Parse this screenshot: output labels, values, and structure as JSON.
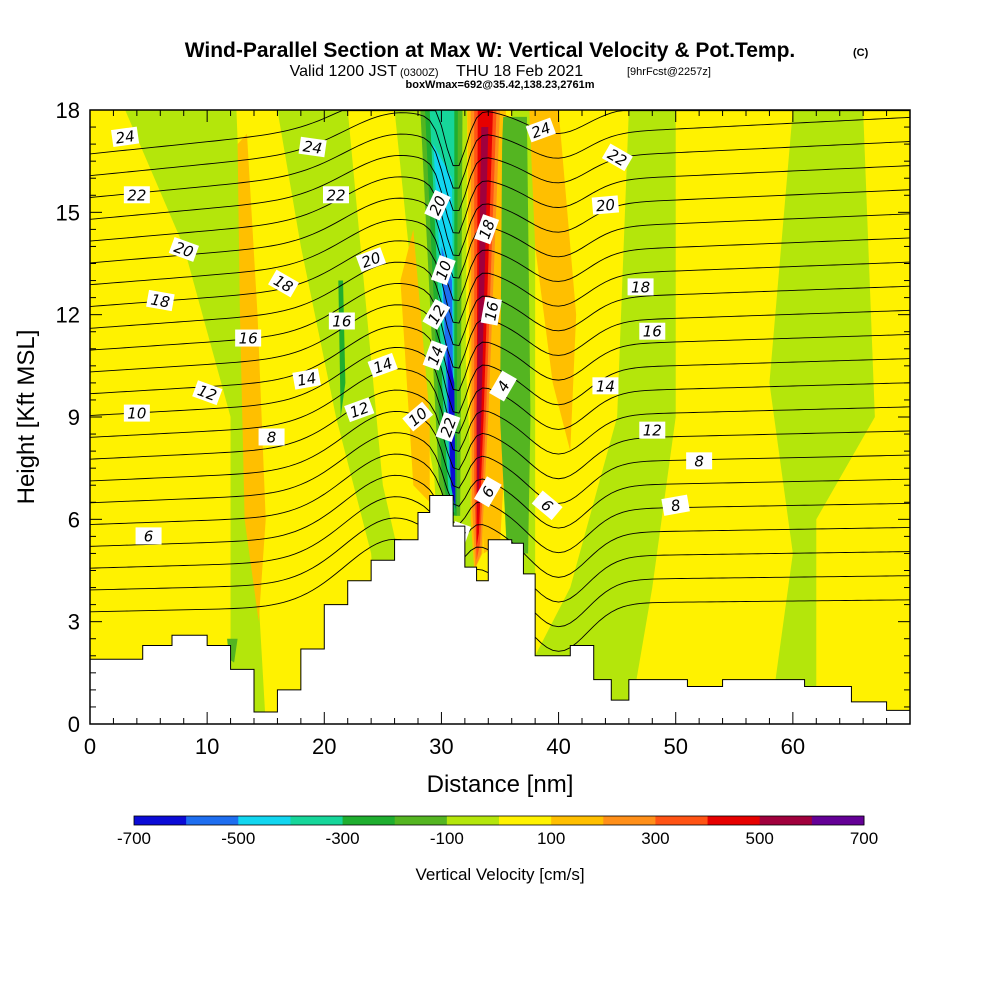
{
  "chart_data": {
    "type": "heatmap",
    "title": "Wind-Parallel Section at Max W: Vertical Velocity & Pot.Temp.",
    "title_mark": "(C)",
    "subtitle_valid": "Valid 1200 JST",
    "subtitle_utc": "(0300Z)",
    "subtitle_date": "THU 18 Feb 2021",
    "subtitle_fcst": "[9hrFcst@2257z]",
    "subtitle_box": "boxWmax=692@35.42,138.23,2761m",
    "xlabel": "Distance [nm]",
    "ylabel": "Height [Kft MSL]",
    "xlim": [
      0,
      70
    ],
    "ylim": [
      0,
      18
    ],
    "x_ticks": [
      "0",
      "10",
      "20",
      "30",
      "40",
      "50",
      "60"
    ],
    "y_ticks": [
      "0",
      "3",
      "6",
      "9",
      "12",
      "15",
      "18"
    ],
    "colorbar": {
      "label": "Vertical Velocity [cm/s]",
      "tick_labels": [
        "-700",
        "-500",
        "-300",
        "-100",
        "100",
        "300",
        "500",
        "700"
      ],
      "colors": [
        "#0b0bd6",
        "#1e6ef0",
        "#12d6f0",
        "#16d69a",
        "#1fae2f",
        "#54b521",
        "#b4e60b",
        "#fff200",
        "#ffbf00",
        "#ff8f19",
        "#ff5314",
        "#e60000",
        "#a0003c",
        "#640096"
      ]
    },
    "theta_contour_labels": [
      "24",
      "24",
      "24",
      "22",
      "22",
      "22",
      "20",
      "20",
      "20",
      "18",
      "18",
      "18",
      "16",
      "16",
      "16",
      "14",
      "14",
      "14",
      "12",
      "12",
      "12",
      "10",
      "10",
      "8",
      "8",
      "8",
      "6",
      "6",
      "6",
      "4",
      "10",
      "12",
      "14",
      "16",
      "18",
      "20",
      "22",
      "24"
    ],
    "terrain_height_kft": [
      [
        0,
        1.9
      ],
      [
        2,
        1.9
      ],
      [
        4.5,
        2.3
      ],
      [
        7,
        2.6
      ],
      [
        10,
        2.3
      ],
      [
        12,
        1.6
      ],
      [
        14,
        0.35
      ],
      [
        16,
        1.0
      ],
      [
        18,
        2.2
      ],
      [
        20,
        3.5
      ],
      [
        22,
        4.2
      ],
      [
        24,
        4.8
      ],
      [
        26,
        5.4
      ],
      [
        28,
        6.2
      ],
      [
        29,
        6.7
      ],
      [
        31,
        5.8
      ],
      [
        32,
        4.6
      ],
      [
        33,
        4.2
      ],
      [
        34,
        5.4
      ],
      [
        36,
        5.3
      ],
      [
        37,
        4.4
      ],
      [
        38,
        2.0
      ],
      [
        40,
        2.0
      ],
      [
        41,
        2.3
      ],
      [
        43,
        1.3
      ],
      [
        44.5,
        0.7
      ],
      [
        46,
        1.3
      ],
      [
        51,
        1.1
      ],
      [
        54,
        1.3
      ],
      [
        61,
        1.1
      ],
      [
        65,
        0.65
      ],
      [
        68,
        0.4
      ]
    ],
    "vertical_velocity_features": [
      {
        "region": "updraft core",
        "x_range_nm": [
          32,
          35
        ],
        "height_kft": [
          4.3,
          18
        ],
        "w_cm_s": 692
      },
      {
        "region": "downdraft core",
        "x_range_nm": [
          29,
          32
        ],
        "height_kft": [
          6.0,
          18
        ],
        "w_cm_s": -650
      },
      {
        "region": "lee downdraft band",
        "x_range_nm": [
          35.5,
          37
        ],
        "height_kft": [
          5,
          18
        ],
        "w_cm_s": -200
      },
      {
        "region": "upstream updraft band",
        "x_range_nm": [
          12,
          15
        ],
        "height_kft": [
          2,
          18
        ],
        "w_cm_s": 200
      },
      {
        "region": "background",
        "x_range_nm": [
          0,
          70
        ],
        "height_kft": [
          0,
          18
        ],
        "w_cm_s": 0
      }
    ]
  }
}
